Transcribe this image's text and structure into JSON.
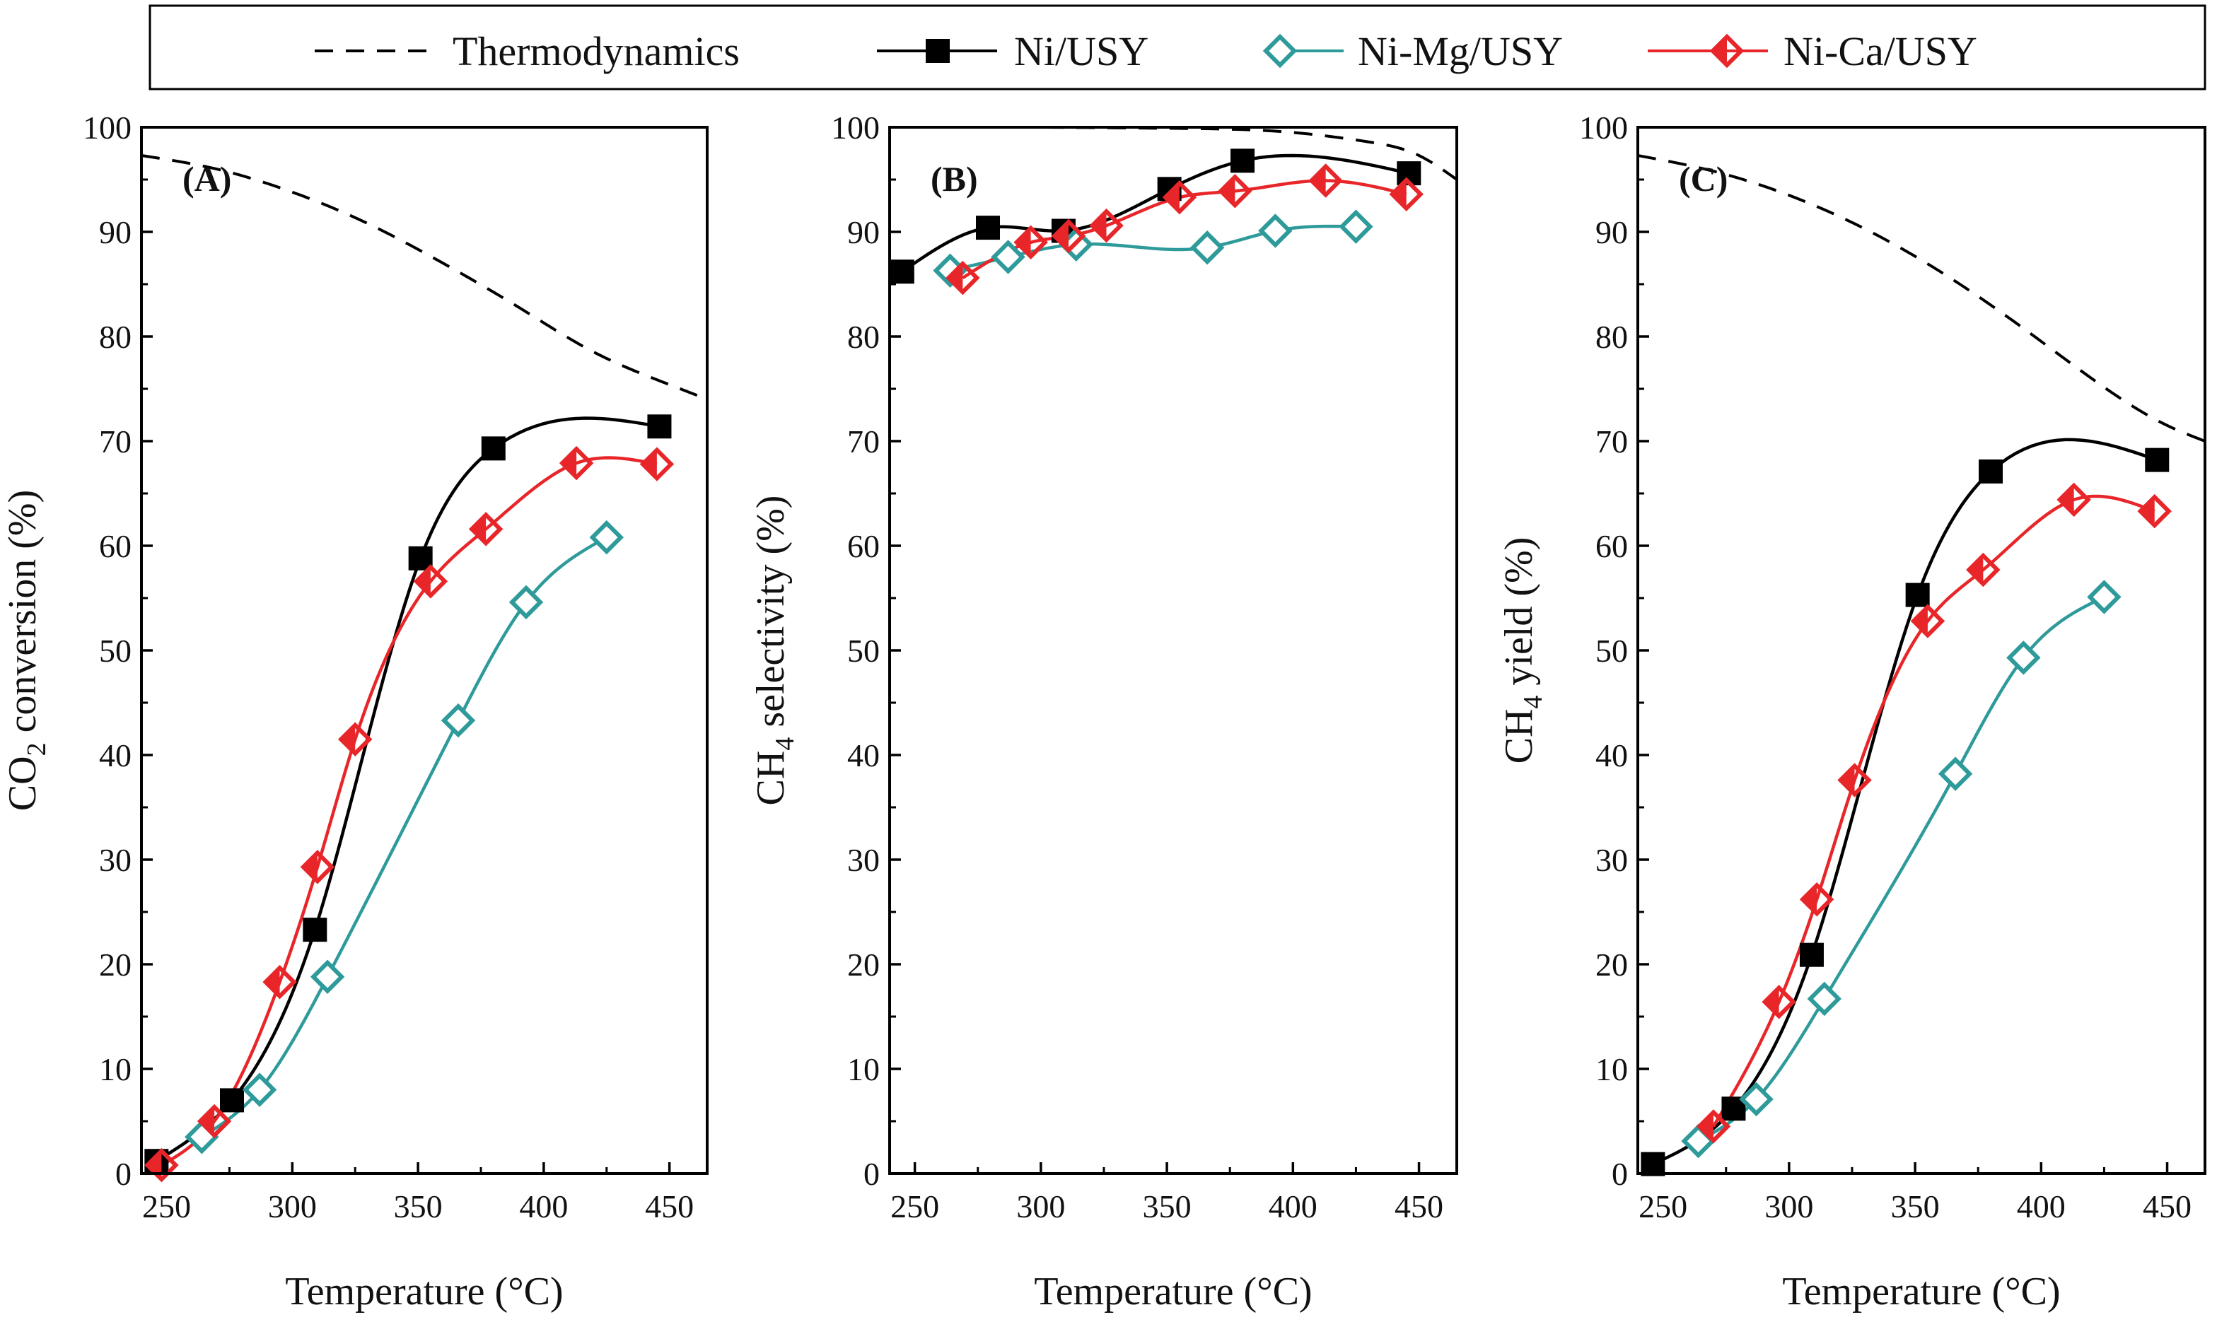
{
  "legend": {
    "entries": [
      {
        "name": "Thermodynamics",
        "style": "dashed",
        "color": "#000000",
        "marker": "none"
      },
      {
        "name": "Ni/USY",
        "style": "solid",
        "color": "#000000",
        "marker": "square"
      },
      {
        "name": "Ni-Mg/USY",
        "style": "solid",
        "color": "#2E9A9A",
        "marker": "diamond-open"
      },
      {
        "name": "Ni-Ca/USY",
        "style": "solid",
        "color": "#E8262A",
        "marker": "diamond-half"
      }
    ]
  },
  "colors": {
    "ni": "#000000",
    "mg": "#2E9A9A",
    "ca": "#E8262A",
    "thermo": "#000000"
  },
  "chart_data": [
    {
      "type": "line",
      "panel_label": "(A)",
      "xlabel": "Temperature (°C)",
      "ylabel_main": "CO",
      "ylabel_sub": "2",
      "ylabel_rest": " conversion (%)",
      "xlim": [
        240,
        465
      ],
      "ylim": [
        0,
        100
      ],
      "xticks": [
        250,
        300,
        350,
        400,
        450
      ],
      "yticks": [
        0,
        10,
        20,
        30,
        40,
        50,
        60,
        70,
        80,
        90,
        100
      ],
      "thermodynamics": {
        "x": [
          240,
          270,
          300,
          330,
          360,
          390,
          420,
          450,
          465
        ],
        "y": [
          97.3,
          96.0,
          93.8,
          90.8,
          87.0,
          82.8,
          78.5,
          75.4,
          74.0
        ]
      },
      "series": [
        {
          "name": "Ni/USY",
          "x": [
            246,
            276,
            309,
            351,
            380,
            446
          ],
          "y": [
            1.2,
            7.0,
            23.3,
            58.8,
            69.3,
            71.4
          ]
        },
        {
          "name": "Ni-Mg/USY",
          "x": [
            264,
            287,
            314,
            366,
            393,
            425
          ],
          "y": [
            3.5,
            8.0,
            18.8,
            43.3,
            54.6,
            60.8
          ]
        },
        {
          "name": "Ni-Ca/USY",
          "x": [
            248,
            269,
            295,
            310,
            325,
            355,
            377,
            413,
            445
          ],
          "y": [
            0.8,
            5.0,
            18.3,
            29.3,
            41.5,
            56.6,
            61.6,
            67.9,
            67.8
          ]
        }
      ]
    },
    {
      "type": "line",
      "panel_label": "(B)",
      "xlabel": "Temperature (°C)",
      "ylabel_main": "CH",
      "ylabel_sub": "4",
      "ylabel_rest": " selectivity (%)",
      "xlim": [
        240,
        465
      ],
      "ylim": [
        0,
        100
      ],
      "xticks": [
        250,
        300,
        350,
        400,
        450
      ],
      "yticks": [
        0,
        10,
        20,
        30,
        40,
        50,
        60,
        70,
        80,
        90,
        100
      ],
      "thermodynamics": {
        "x": [
          240,
          300,
          350,
          400,
          430,
          450,
          465
        ],
        "y": [
          100,
          100,
          99.9,
          99.5,
          98.6,
          97.3,
          95.0
        ]
      },
      "series": [
        {
          "name": "Ni/USY",
          "x": [
            245,
            279,
            309,
            351,
            380,
            446
          ],
          "y": [
            86.2,
            90.4,
            90.1,
            94.1,
            96.8,
            95.6
          ]
        },
        {
          "name": "Ni-Mg/USY",
          "x": [
            264,
            287,
            314,
            366,
            393,
            425
          ],
          "y": [
            86.3,
            87.6,
            88.8,
            88.5,
            90.1,
            90.5
          ]
        },
        {
          "name": "Ni-Ca/USY",
          "x": [
            269,
            296,
            311,
            326,
            355,
            377,
            413,
            445
          ],
          "y": [
            85.6,
            89.0,
            89.6,
            90.6,
            93.3,
            93.9,
            94.9,
            93.6
          ]
        }
      ]
    },
    {
      "type": "line",
      "panel_label": "(C)",
      "xlabel": "Temperature (°C)",
      "ylabel_main": "CH",
      "ylabel_sub": "4",
      "ylabel_rest": " yield (%)",
      "xlim": [
        240,
        465
      ],
      "ylim": [
        0,
        100
      ],
      "xticks": [
        250,
        300,
        350,
        400,
        450
      ],
      "yticks": [
        0,
        10,
        20,
        30,
        40,
        50,
        60,
        70,
        80,
        90,
        100
      ],
      "thermodynamics": {
        "x": [
          240,
          270,
          300,
          330,
          360,
          390,
          420,
          450,
          465
        ],
        "y": [
          97.3,
          95.8,
          93.5,
          90.3,
          86.2,
          81.3,
          76.0,
          71.5,
          70.0
        ]
      },
      "series": [
        {
          "name": "Ni/USY",
          "x": [
            246,
            278,
            309,
            351,
            380,
            446
          ],
          "y": [
            0.9,
            6.2,
            20.9,
            55.3,
            67.1,
            68.2
          ]
        },
        {
          "name": "Ni-Mg/USY",
          "x": [
            264,
            287,
            314,
            366,
            393,
            425
          ],
          "y": [
            3.1,
            7.1,
            16.7,
            38.2,
            49.3,
            55.1
          ]
        },
        {
          "name": "Ni-Ca/USY",
          "x": [
            270,
            296,
            311,
            326,
            355,
            377,
            413,
            445
          ],
          "y": [
            4.5,
            16.4,
            26.2,
            37.6,
            52.8,
            57.7,
            64.4,
            63.3
          ]
        }
      ]
    }
  ]
}
